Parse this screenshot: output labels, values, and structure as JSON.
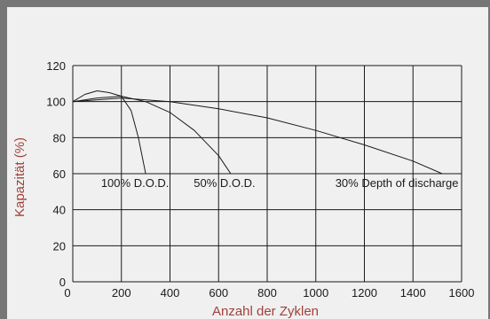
{
  "chart_data": {
    "type": "line",
    "title": "",
    "xlabel": "Anzahl der Zyklen",
    "ylabel": "Kapazität (%)",
    "xlim": [
      0,
      1600
    ],
    "ylim": [
      0,
      120
    ],
    "x_ticks": [
      0,
      200,
      400,
      600,
      800,
      1000,
      1200,
      1400,
      1600
    ],
    "y_ticks": [
      0,
      20,
      40,
      60,
      80,
      100,
      120
    ],
    "grid": true,
    "legend": "none",
    "colors": {
      "line": "#1a1a1a",
      "grid": "#1a1a1a",
      "title": "#a0413a",
      "background": "#f0f0f0",
      "frame": "#767676"
    },
    "series": [
      {
        "name": "100% D.O.D.",
        "x": [
          0,
          50,
          100,
          150,
          200,
          240,
          270,
          300
        ],
        "y": [
          100,
          104,
          106,
          105,
          103,
          95,
          80,
          60
        ]
      },
      {
        "name": "50% D.O.D.",
        "x": [
          0,
          100,
          200,
          300,
          400,
          500,
          600,
          650
        ],
        "y": [
          100,
          102,
          103,
          100,
          94,
          84,
          70,
          60
        ]
      },
      {
        "name": "30% Depth of discharge",
        "x": [
          0,
          200,
          400,
          600,
          800,
          1000,
          1200,
          1400,
          1520
        ],
        "y": [
          100,
          102,
          100,
          96,
          91,
          84,
          76,
          67,
          60
        ]
      }
    ]
  }
}
